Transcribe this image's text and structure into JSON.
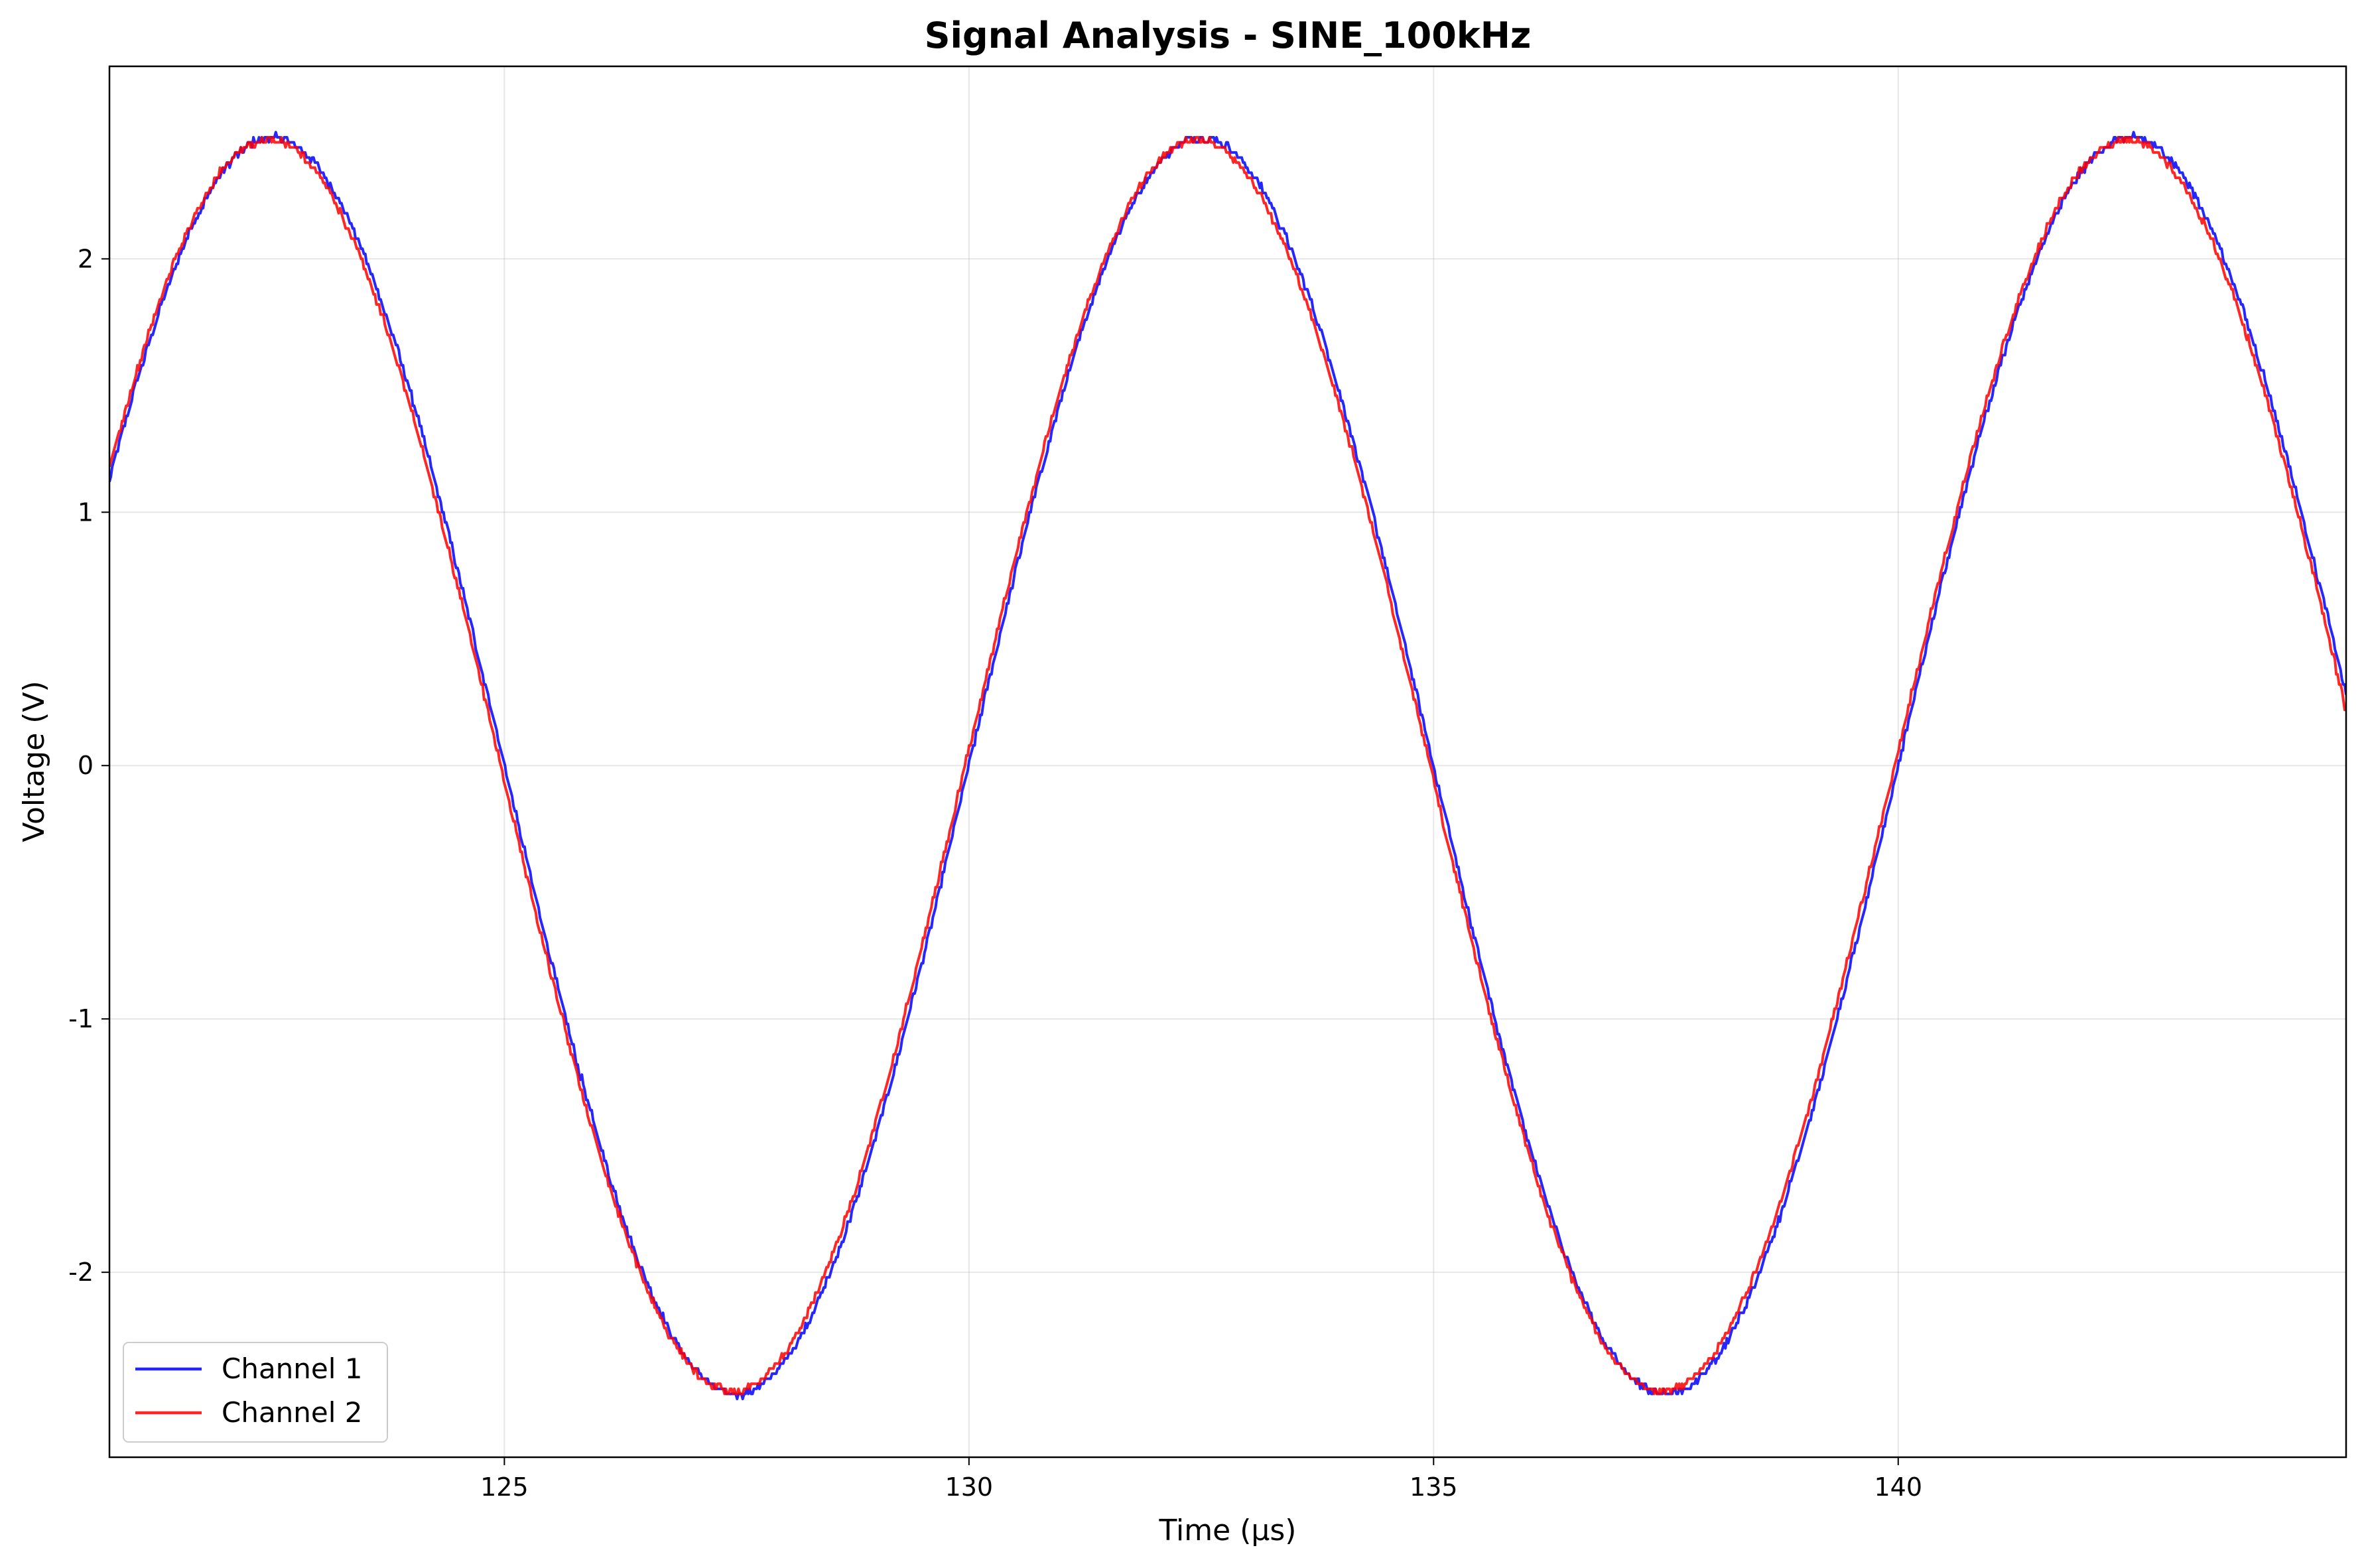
{
  "chart_data": {
    "type": "line",
    "title": "Signal Analysis - SINE_100kHz",
    "xlabel": "Time (µs)",
    "ylabel": "Voltage (V)",
    "xlim": [
      120.75,
      144.82
    ],
    "ylim": [
      -2.73,
      2.76
    ],
    "xticks": [
      125,
      130,
      135,
      140
    ],
    "xtick_labels": [
      "125",
      "130",
      "135",
      "140"
    ],
    "yticks": [
      -2,
      -1,
      0,
      1,
      2
    ],
    "ytick_labels": [
      "-2",
      "-1",
      "0",
      "1",
      "2"
    ],
    "grid": true,
    "legend_position": "lower-left",
    "signal": {
      "waveform": "sine",
      "frequency_khz": 100,
      "period_us": 10,
      "amplitude_v": 2.5,
      "zero_crossing_rising_us": 130,
      "x_start_us": 120.75,
      "x_end_us": 144.82
    },
    "series": [
      {
        "name": "Channel 1",
        "color": "#0000ff",
        "amplitude_v": 2.48,
        "phase_offset_us": 0.0,
        "quantization_v": 0.02
      },
      {
        "name": "Channel 2",
        "color": "#ff0000",
        "amplitude_v": 2.47,
        "phase_offset_us": -0.04,
        "quantization_v": 0.02
      }
    ]
  }
}
